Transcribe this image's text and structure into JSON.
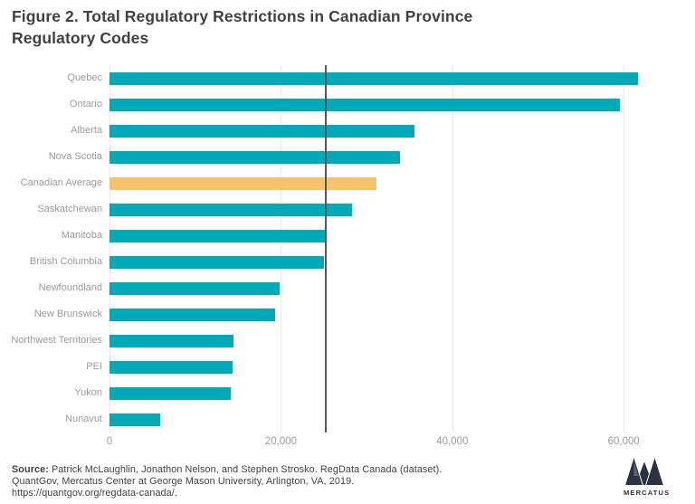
{
  "chart_data": {
    "type": "bar",
    "orientation": "horizontal",
    "title": "Figure 2. Total Regulatory Restrictions in Canadian Province Regulatory Codes",
    "categories": [
      "Quebec",
      "Ontario",
      "Alberta",
      "Nova Scotia",
      "Canadian Average",
      "Saskatchewan",
      "Manitoba",
      "British Columbia",
      "Newfoundland",
      "New Brunswick",
      "Northwest Territories",
      "PEI",
      "Yukon",
      "Nunavut"
    ],
    "values": [
      61700,
      59600,
      35600,
      33900,
      31100,
      28300,
      25300,
      25000,
      19900,
      19300,
      14500,
      14400,
      14200,
      5900
    ],
    "highlight_category": "Canadian Average",
    "bar_color": "#00a9b7",
    "highlight_color": "#f5c36c",
    "reference_line_value": 25100,
    "reference_line_color": "#55565a",
    "x_ticks": [
      0,
      20000,
      40000,
      60000
    ],
    "x_tick_labels": [
      "0",
      "20,000",
      "40,000",
      "60,000"
    ],
    "xlim": [
      0,
      66000
    ],
    "grid": "vertical-light",
    "legend": "none",
    "xlabel": "",
    "ylabel": ""
  },
  "footer": {
    "source_label": "Source:",
    "source_line1_rest": " Patrick McLaughlin, Jonathon Nelson, and Stephen Strosko. RegData Canada (dataset).",
    "source_line2": "QuantGov, Mercatus Center at George Mason University, Arlington, VA, 2019.",
    "source_line3": "https://quantgov.org/regdata-canada/.",
    "logo_text": "MERCATUS",
    "logo_color": "#2b3240"
  }
}
